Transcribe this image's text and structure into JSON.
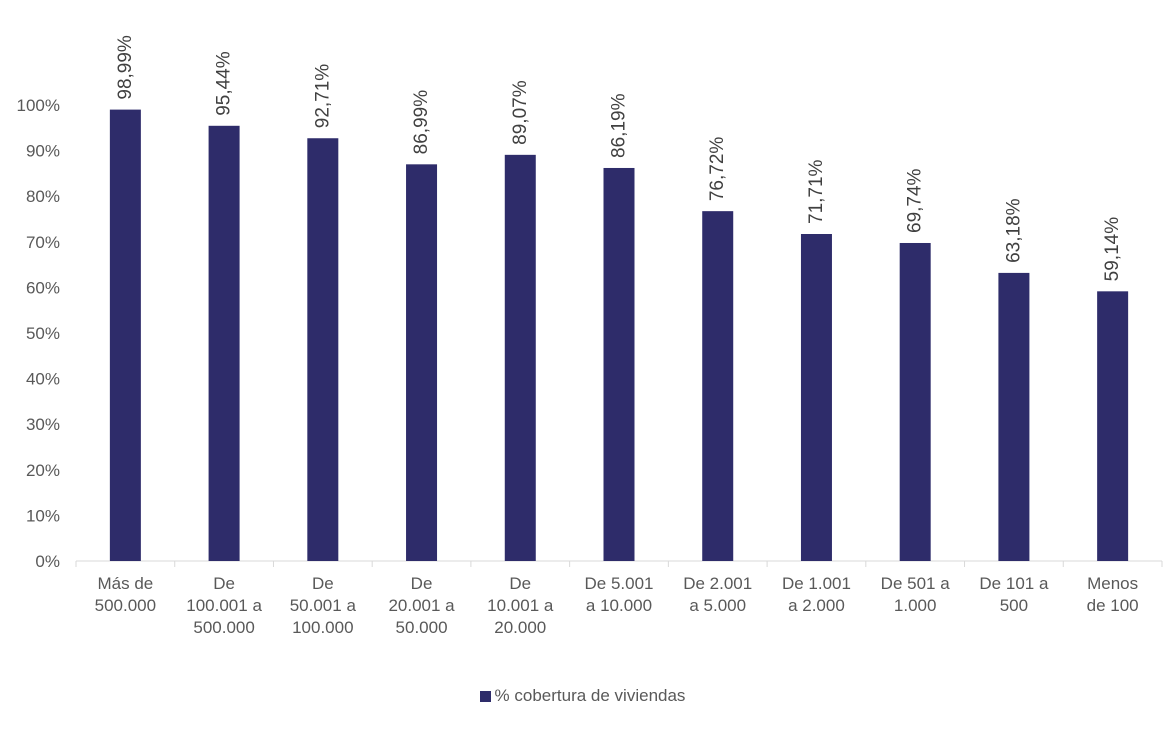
{
  "chart_data": {
    "type": "bar",
    "title": "",
    "xlabel": "",
    "ylabel": "",
    "categories": [
      [
        "Más de",
        "500.000"
      ],
      [
        "De",
        "100.001 a",
        "500.000"
      ],
      [
        "De",
        "50.001 a",
        "100.000"
      ],
      [
        "De",
        "20.001 a",
        "50.000"
      ],
      [
        "De",
        "10.001 a",
        "20.000"
      ],
      [
        "De 5.001",
        "a 10.000"
      ],
      [
        "De 2.001",
        "a 5.000"
      ],
      [
        "De 1.001",
        "a 2.000"
      ],
      [
        "De 501 a",
        "1.000"
      ],
      [
        "De 101 a",
        "500"
      ],
      [
        "Menos",
        "de 100"
      ]
    ],
    "series": [
      {
        "name": "% cobertura de viviendas",
        "values": [
          98.99,
          95.44,
          92.71,
          86.99,
          89.07,
          86.19,
          76.72,
          71.71,
          69.74,
          63.18,
          59.14
        ],
        "labels": [
          "98,99%",
          "95,44%",
          "92,71%",
          "86,99%",
          "89,07%",
          "86,19%",
          "76,72%",
          "71,71%",
          "69,74%",
          "63,18%",
          "59,14%"
        ],
        "color": "#2E2C6A"
      }
    ],
    "ylim": [
      0,
      100
    ],
    "yticks": [
      "0%",
      "10%",
      "20%",
      "30%",
      "40%",
      "50%",
      "60%",
      "70%",
      "80%",
      "90%",
      "100%"
    ],
    "grid": false,
    "legend_position": "bottom"
  }
}
